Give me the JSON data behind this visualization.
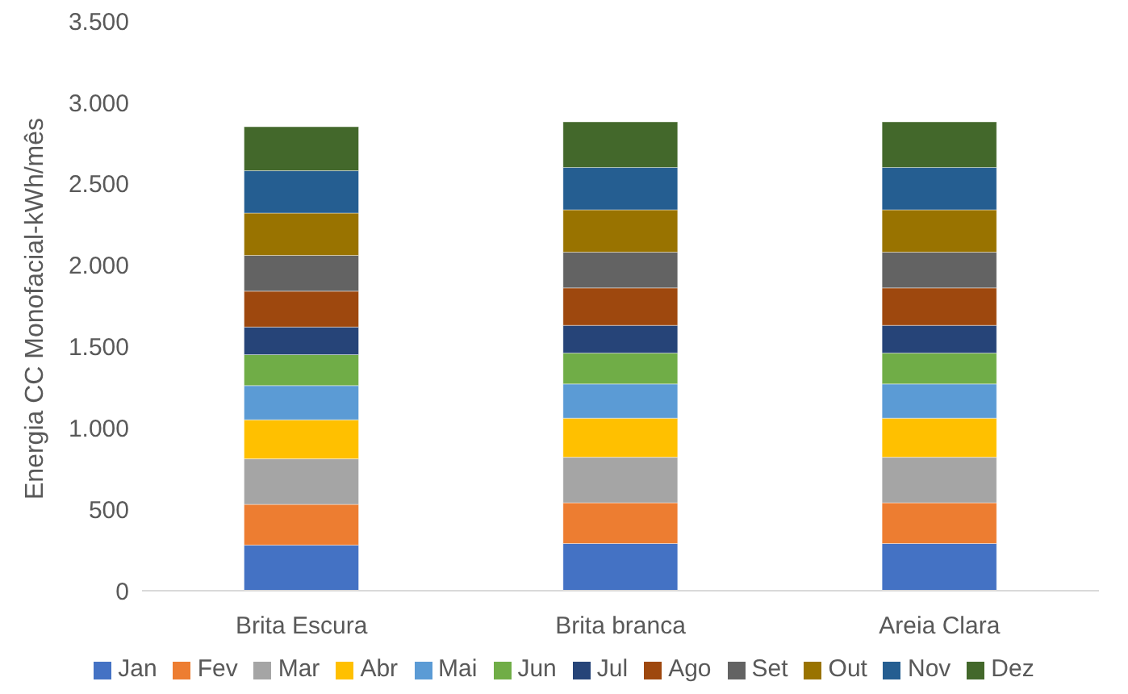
{
  "chart_data": {
    "type": "bar",
    "stacked": true,
    "ylabel": "Energia CC Monofacial-kWh/mês",
    "categories": [
      "Brita Escura",
      "Brita branca",
      "Areia Clara"
    ],
    "series": [
      {
        "name": "Jan",
        "color": "#4472c4",
        "values": [
          280,
          290,
          290
        ]
      },
      {
        "name": "Fev",
        "color": "#ed7d31",
        "values": [
          250,
          250,
          250
        ]
      },
      {
        "name": "Mar",
        "color": "#a5a5a5",
        "values": [
          280,
          280,
          280
        ]
      },
      {
        "name": "Abr",
        "color": "#ffc000",
        "values": [
          240,
          240,
          240
        ]
      },
      {
        "name": "Mai",
        "color": "#5b9bd5",
        "values": [
          210,
          210,
          210
        ]
      },
      {
        "name": "Jun",
        "color": "#70ad47",
        "values": [
          190,
          190,
          190
        ]
      },
      {
        "name": "Jul",
        "color": "#264478",
        "values": [
          170,
          170,
          170
        ]
      },
      {
        "name": "Ago",
        "color": "#9e480e",
        "values": [
          220,
          230,
          230
        ]
      },
      {
        "name": "Set",
        "color": "#636363",
        "values": [
          220,
          220,
          220
        ]
      },
      {
        "name": "Out",
        "color": "#997300",
        "values": [
          260,
          260,
          260
        ]
      },
      {
        "name": "Nov",
        "color": "#255e91",
        "values": [
          260,
          260,
          260
        ]
      },
      {
        "name": "Dez",
        "color": "#43682b",
        "values": [
          270,
          280,
          280
        ]
      }
    ],
    "ylim": [
      0,
      3500
    ],
    "yticks": [
      {
        "value": 0,
        "label": "0"
      },
      {
        "value": 500,
        "label": "500"
      },
      {
        "value": 1000,
        "label": "1.000"
      },
      {
        "value": 1500,
        "label": "1.500"
      },
      {
        "value": 2000,
        "label": "2.000"
      },
      {
        "value": 2500,
        "label": "2.500"
      },
      {
        "value": 3000,
        "label": "3.000"
      },
      {
        "value": 3500,
        "label": "3.500"
      }
    ],
    "grid": false,
    "legend": "bottom"
  }
}
